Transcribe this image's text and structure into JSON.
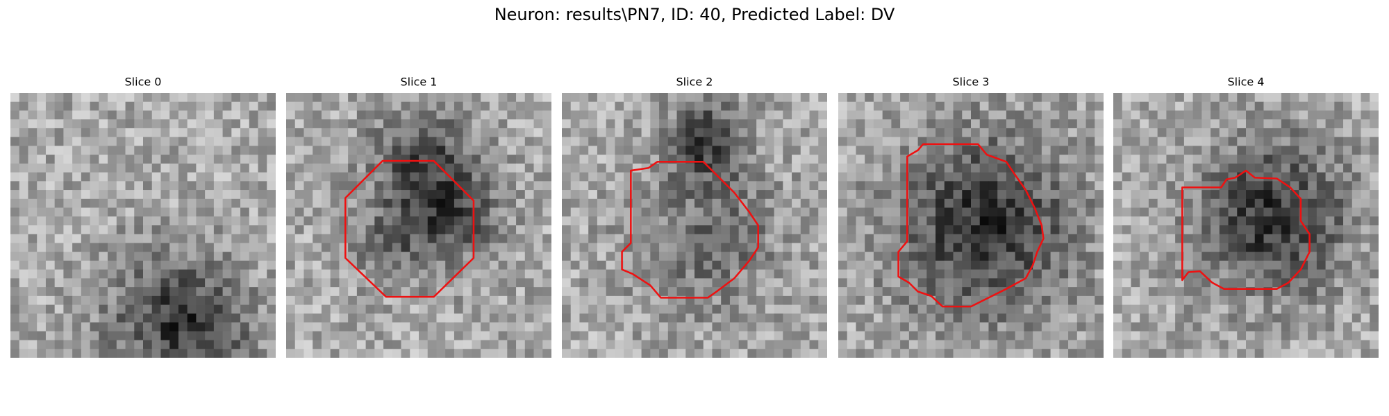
{
  "title": "Neuron: results\\PN7, ID: 40, Predicted Label: DV",
  "panels": [
    {
      "title": "Slice 0"
    },
    {
      "title": "Slice 1"
    },
    {
      "title": "Slice 2"
    },
    {
      "title": "Slice 3"
    },
    {
      "title": "Slice 4"
    }
  ]
}
